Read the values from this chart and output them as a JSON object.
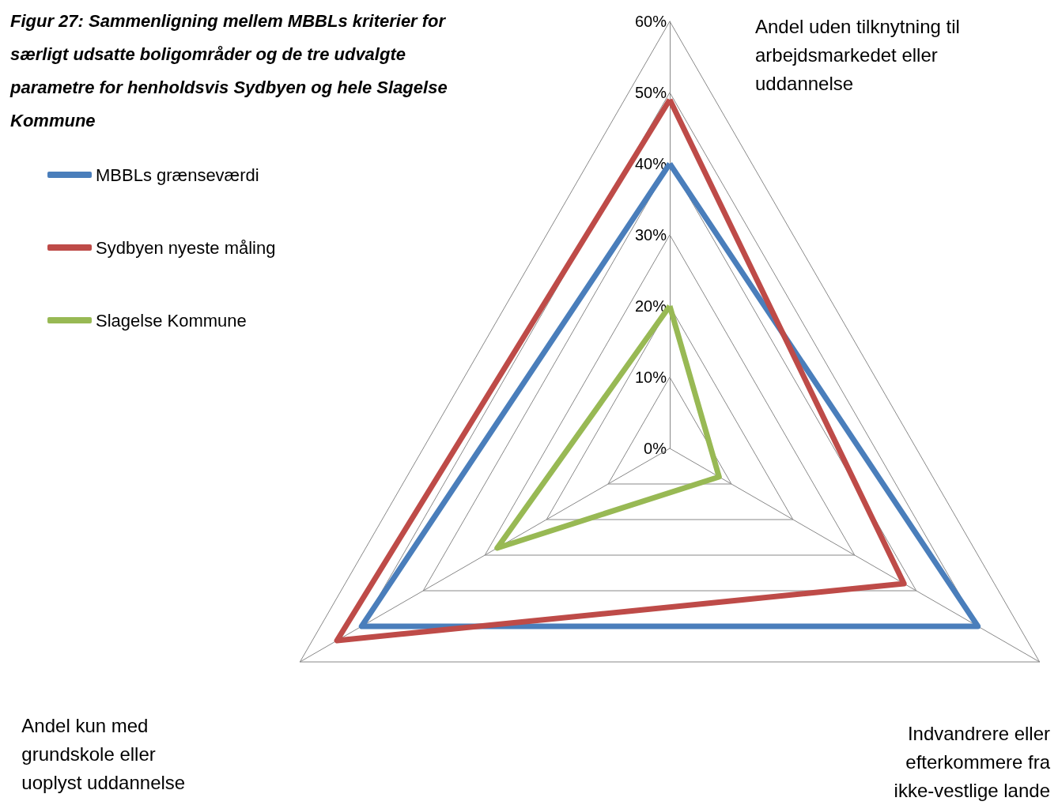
{
  "chart_data": {
    "type": "radar",
    "title": "Figur 27: Sammenligning mellem MBBLs kriterier for særligt udsatte boligområder og de tre udvalgte parametre for henholdsvis Sydbyen og hele Slagelse Kommune",
    "categories": [
      "Andel uden tilknytning til arbejdsmarkedet eller uddannelse",
      "Indvandrere eller efterkommere fra ikke-vestlige lande",
      "Andel kun med grundskole eller uoplyst uddannelse"
    ],
    "series": [
      {
        "name": "MBBLs grænseværdi",
        "color": "#4a7ebb",
        "values": [
          40,
          50,
          50
        ]
      },
      {
        "name": "Sydbyen nyeste måling",
        "color": "#be4b48",
        "values": [
          49,
          38,
          54
        ]
      },
      {
        "name": "Slagelse Kommune",
        "color": "#98b954",
        "values": [
          20,
          8,
          28
        ]
      }
    ],
    "ylim": [
      0,
      60
    ],
    "yticks": [
      {
        "value": 0,
        "label": "0%"
      },
      {
        "value": 10,
        "label": "10%"
      },
      {
        "value": 20,
        "label": "20%"
      },
      {
        "value": 30,
        "label": "30%"
      },
      {
        "value": 40,
        "label": "40%"
      },
      {
        "value": 50,
        "label": "50%"
      },
      {
        "value": 60,
        "label": "60%"
      }
    ],
    "legend": "left",
    "marker": "none",
    "line_style": "solid"
  }
}
